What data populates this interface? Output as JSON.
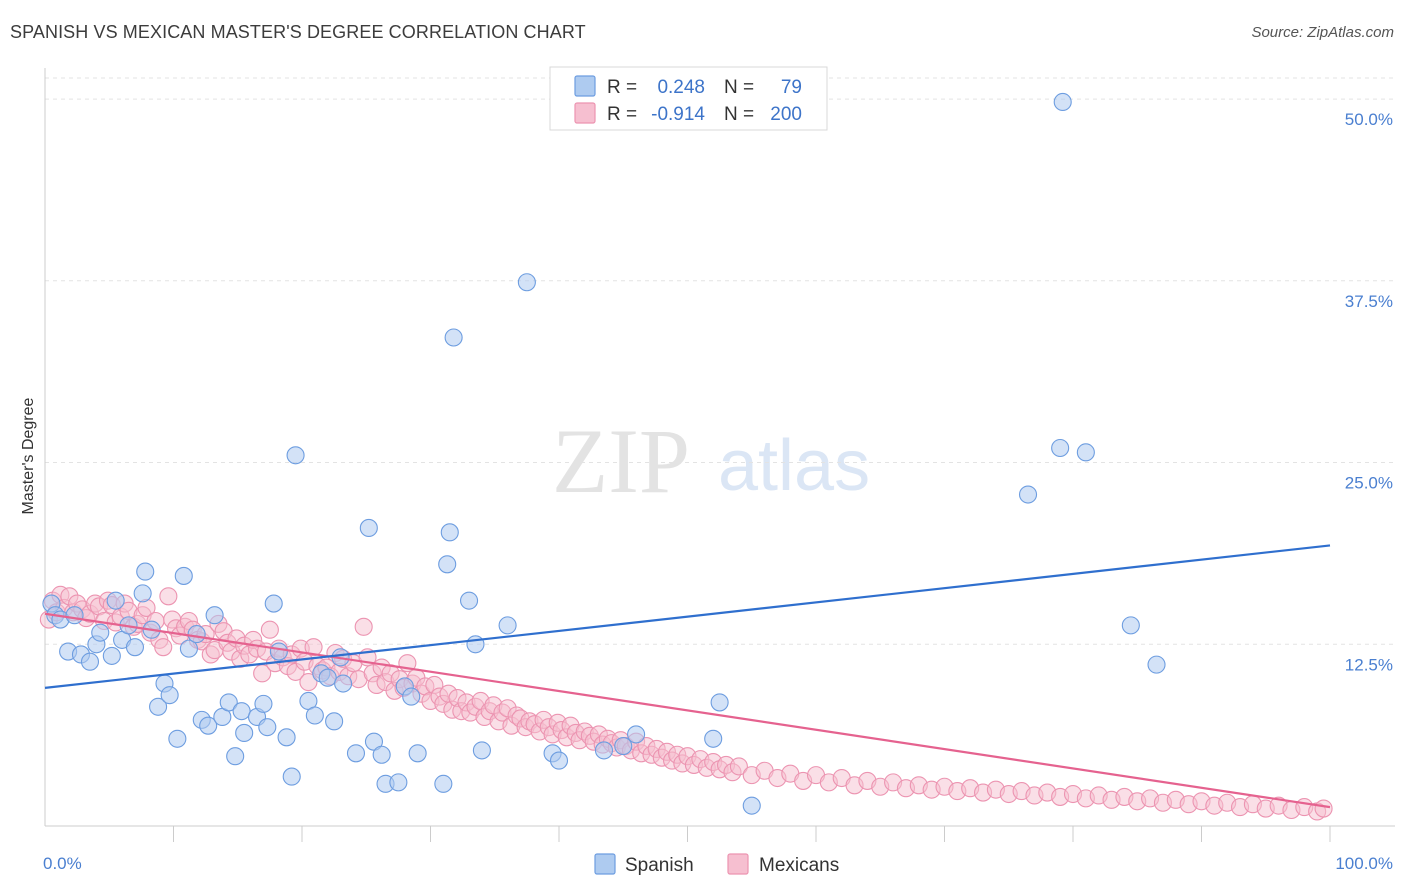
{
  "header": {
    "title": "SPANISH VS MEXICAN MASTER'S DEGREE CORRELATION CHART",
    "source": "Source: ZipAtlas.com"
  },
  "colors": {
    "spanish_fill": "#aecbf0",
    "spanish_stroke": "#6d9de0",
    "spanish_line": "#2f6fce",
    "mexican_fill": "#f6bfd0",
    "mexican_stroke": "#ec94b1",
    "mexican_line": "#e5628f",
    "axis_label": "#4a7fd0"
  },
  "watermark": {
    "part1": "ZIP",
    "part2": "atlas"
  },
  "legend": {
    "spanish": {
      "r_label": "R =",
      "r_value": "0.248",
      "n_label": "N =",
      "n_value": "79"
    },
    "mexican": {
      "r_label": "R =",
      "r_value": "-0.914",
      "n_label": "N =",
      "n_value": "200"
    }
  },
  "bottom_legend": {
    "spanish": "Spanish",
    "mexican": "Mexicans"
  },
  "chart_data": {
    "type": "scatter",
    "title": "SPANISH VS MEXICAN MASTER'S DEGREE CORRELATION CHART",
    "xlabel": "",
    "ylabel": "Master's Degree",
    "xlim": [
      0,
      100
    ],
    "ylim": [
      0,
      52
    ],
    "x_tick_labels": [
      "0.0%",
      "100.0%"
    ],
    "y_ticks": [
      12.5,
      25.0,
      37.5,
      50.0
    ],
    "y_tick_labels": [
      "12.5%",
      "25.0%",
      "37.5%",
      "50.0%"
    ],
    "grid": true,
    "series": [
      {
        "name": "Spanish",
        "R": 0.248,
        "N": 79,
        "trend": {
          "x": [
            0,
            100
          ],
          "y": [
            9.5,
            19.3
          ]
        },
        "points": [
          [
            0.5,
            15.3
          ],
          [
            0.8,
            14.5
          ],
          [
            1.2,
            14.2
          ],
          [
            1.8,
            12.0
          ],
          [
            2.3,
            14.5
          ],
          [
            2.8,
            11.8
          ],
          [
            3.5,
            11.3
          ],
          [
            4.0,
            12.5
          ],
          [
            4.3,
            13.3
          ],
          [
            5.2,
            11.7
          ],
          [
            5.5,
            15.5
          ],
          [
            6.0,
            12.8
          ],
          [
            6.5,
            13.8
          ],
          [
            7.0,
            12.3
          ],
          [
            7.6,
            16.0
          ],
          [
            7.8,
            17.5
          ],
          [
            8.3,
            13.5
          ],
          [
            8.8,
            8.2
          ],
          [
            9.3,
            9.8
          ],
          [
            9.7,
            9.0
          ],
          [
            10.3,
            6.0
          ],
          [
            10.8,
            17.2
          ],
          [
            11.2,
            12.2
          ],
          [
            11.8,
            13.2
          ],
          [
            12.2,
            7.3
          ],
          [
            12.7,
            6.9
          ],
          [
            13.2,
            14.5
          ],
          [
            13.8,
            7.5
          ],
          [
            14.3,
            8.5
          ],
          [
            14.8,
            4.8
          ],
          [
            15.3,
            7.9
          ],
          [
            15.5,
            6.4
          ],
          [
            16.5,
            7.5
          ],
          [
            17.0,
            8.4
          ],
          [
            17.3,
            6.8
          ],
          [
            17.8,
            15.3
          ],
          [
            18.2,
            12.0
          ],
          [
            18.8,
            6.1
          ],
          [
            19.2,
            3.4
          ],
          [
            19.5,
            25.5
          ],
          [
            20.5,
            8.6
          ],
          [
            21.0,
            7.6
          ],
          [
            21.5,
            10.5
          ],
          [
            22.0,
            10.2
          ],
          [
            22.5,
            7.2
          ],
          [
            23.0,
            11.6
          ],
          [
            23.2,
            9.8
          ],
          [
            24.2,
            5.0
          ],
          [
            25.2,
            20.5
          ],
          [
            25.6,
            5.8
          ],
          [
            26.2,
            4.9
          ],
          [
            26.5,
            2.9
          ],
          [
            27.5,
            3.0
          ],
          [
            28.0,
            9.6
          ],
          [
            28.5,
            8.9
          ],
          [
            29.0,
            5.0
          ],
          [
            31.0,
            2.9
          ],
          [
            31.5,
            20.2
          ],
          [
            31.8,
            33.6
          ],
          [
            31.3,
            18.0
          ],
          [
            33.0,
            15.5
          ],
          [
            33.5,
            12.5
          ],
          [
            34.0,
            5.2
          ],
          [
            36.0,
            13.8
          ],
          [
            37.5,
            37.4
          ],
          [
            39.5,
            5.0
          ],
          [
            40.0,
            4.5
          ],
          [
            43.5,
            5.2
          ],
          [
            45.0,
            5.5
          ],
          [
            46.0,
            6.3
          ],
          [
            52.0,
            6.0
          ],
          [
            52.5,
            8.5
          ],
          [
            55.0,
            1.4
          ],
          [
            76.5,
            22.8
          ],
          [
            79.0,
            26.0
          ],
          [
            81.0,
            25.7
          ],
          [
            79.2,
            49.8
          ],
          [
            84.5,
            13.8
          ],
          [
            86.5,
            11.1
          ]
        ]
      },
      {
        "name": "Mexicans",
        "R": -0.914,
        "N": 200,
        "trend": {
          "x": [
            0,
            100
          ],
          "y": [
            14.6,
            1.3
          ]
        },
        "points": [
          [
            0.3,
            14.2
          ],
          [
            0.6,
            15.5
          ],
          [
            0.9,
            14.7
          ],
          [
            1.2,
            15.9
          ],
          [
            1.5,
            15.0
          ],
          [
            1.9,
            15.8
          ],
          [
            2.2,
            14.7
          ],
          [
            2.5,
            15.3
          ],
          [
            2.9,
            14.9
          ],
          [
            3.2,
            14.3
          ],
          [
            3.5,
            14.6
          ],
          [
            3.9,
            15.3
          ],
          [
            4.2,
            15.1
          ],
          [
            4.6,
            14.1
          ],
          [
            4.9,
            15.5
          ],
          [
            5.2,
            15.2
          ],
          [
            5.5,
            14.0
          ],
          [
            5.9,
            14.4
          ],
          [
            6.2,
            15.3
          ],
          [
            6.5,
            14.8
          ],
          [
            6.9,
            13.7
          ],
          [
            7.2,
            13.9
          ],
          [
            7.6,
            14.5
          ],
          [
            7.9,
            15.0
          ],
          [
            8.2,
            13.3
          ],
          [
            8.6,
            14.1
          ],
          [
            8.9,
            12.8
          ],
          [
            9.2,
            12.3
          ],
          [
            9.6,
            15.8
          ],
          [
            9.9,
            14.2
          ],
          [
            10.2,
            13.6
          ],
          [
            10.5,
            13.1
          ],
          [
            10.9,
            13.7
          ],
          [
            11.2,
            14.1
          ],
          [
            11.5,
            13.5
          ],
          [
            11.9,
            12.8
          ],
          [
            12.2,
            12.7
          ],
          [
            12.5,
            13.2
          ],
          [
            12.9,
            11.8
          ],
          [
            13.2,
            12.1
          ],
          [
            13.5,
            13.9
          ],
          [
            13.9,
            13.4
          ],
          [
            14.2,
            12.6
          ],
          [
            14.5,
            12.0
          ],
          [
            14.9,
            12.9
          ],
          [
            15.2,
            11.5
          ],
          [
            15.5,
            12.4
          ],
          [
            15.9,
            11.8
          ],
          [
            16.2,
            12.8
          ],
          [
            16.5,
            12.2
          ],
          [
            16.9,
            10.5
          ],
          [
            17.2,
            12.0
          ],
          [
            17.5,
            13.5
          ],
          [
            17.9,
            11.2
          ],
          [
            18.2,
            12.2
          ],
          [
            18.5,
            11.6
          ],
          [
            18.9,
            11.0
          ],
          [
            19.2,
            11.8
          ],
          [
            19.5,
            10.6
          ],
          [
            19.9,
            12.2
          ],
          [
            20.2,
            11.3
          ],
          [
            20.5,
            9.9
          ],
          [
            20.9,
            12.3
          ],
          [
            21.2,
            11.0
          ],
          [
            21.6,
            10.7
          ],
          [
            21.9,
            10.9
          ],
          [
            22.2,
            10.3
          ],
          [
            22.6,
            11.9
          ],
          [
            22.9,
            10.6
          ],
          [
            23.2,
            11.5
          ],
          [
            23.6,
            10.3
          ],
          [
            24.0,
            11.2
          ],
          [
            24.4,
            10.1
          ],
          [
            24.8,
            13.7
          ],
          [
            25.1,
            11.6
          ],
          [
            25.5,
            10.5
          ],
          [
            25.8,
            9.7
          ],
          [
            26.2,
            10.9
          ],
          [
            26.5,
            9.9
          ],
          [
            26.9,
            10.5
          ],
          [
            27.2,
            9.3
          ],
          [
            27.6,
            10.1
          ],
          [
            27.9,
            9.5
          ],
          [
            28.2,
            11.2
          ],
          [
            28.6,
            9.8
          ],
          [
            28.9,
            10.2
          ],
          [
            29.3,
            9.1
          ],
          [
            29.6,
            9.6
          ],
          [
            30.0,
            8.6
          ],
          [
            30.3,
            9.7
          ],
          [
            30.7,
            8.9
          ],
          [
            31.0,
            8.4
          ],
          [
            31.4,
            9.1
          ],
          [
            31.7,
            8.0
          ],
          [
            32.1,
            8.8
          ],
          [
            32.4,
            7.9
          ],
          [
            32.8,
            8.5
          ],
          [
            33.1,
            7.8
          ],
          [
            33.5,
            8.2
          ],
          [
            33.9,
            8.6
          ],
          [
            34.2,
            7.5
          ],
          [
            34.6,
            7.9
          ],
          [
            34.9,
            8.3
          ],
          [
            35.3,
            7.2
          ],
          [
            35.6,
            7.8
          ],
          [
            36.0,
            8.1
          ],
          [
            36.3,
            6.9
          ],
          [
            36.7,
            7.6
          ],
          [
            37.0,
            7.4
          ],
          [
            37.4,
            6.8
          ],
          [
            37.7,
            7.2
          ],
          [
            38.1,
            7.0
          ],
          [
            38.5,
            6.5
          ],
          [
            38.8,
            7.3
          ],
          [
            39.2,
            6.8
          ],
          [
            39.5,
            6.3
          ],
          [
            39.9,
            7.1
          ],
          [
            40.2,
            6.6
          ],
          [
            40.6,
            6.1
          ],
          [
            40.9,
            6.9
          ],
          [
            41.3,
            6.4
          ],
          [
            41.6,
            5.9
          ],
          [
            42.0,
            6.5
          ],
          [
            42.4,
            6.2
          ],
          [
            42.7,
            5.8
          ],
          [
            43.1,
            6.3
          ],
          [
            43.4,
            5.6
          ],
          [
            43.8,
            6.0
          ],
          [
            44.1,
            5.7
          ],
          [
            44.5,
            5.4
          ],
          [
            44.8,
            5.9
          ],
          [
            45.2,
            5.5
          ],
          [
            45.6,
            5.2
          ],
          [
            46.0,
            5.8
          ],
          [
            46.4,
            5.0
          ],
          [
            46.8,
            5.5
          ],
          [
            47.2,
            4.9
          ],
          [
            47.6,
            5.3
          ],
          [
            48.0,
            4.7
          ],
          [
            48.4,
            5.1
          ],
          [
            48.8,
            4.5
          ],
          [
            49.2,
            4.9
          ],
          [
            49.6,
            4.3
          ],
          [
            50.0,
            4.8
          ],
          [
            50.5,
            4.2
          ],
          [
            51.0,
            4.6
          ],
          [
            51.5,
            4.0
          ],
          [
            52.0,
            4.4
          ],
          [
            52.5,
            3.9
          ],
          [
            53.0,
            4.2
          ],
          [
            53.5,
            3.7
          ],
          [
            54.0,
            4.1
          ],
          [
            55.0,
            3.5
          ],
          [
            56.0,
            3.8
          ],
          [
            57.0,
            3.3
          ],
          [
            58.0,
            3.6
          ],
          [
            59.0,
            3.1
          ],
          [
            60.0,
            3.5
          ],
          [
            61.0,
            3.0
          ],
          [
            62.0,
            3.3
          ],
          [
            63.0,
            2.8
          ],
          [
            64.0,
            3.1
          ],
          [
            65.0,
            2.7
          ],
          [
            66.0,
            3.0
          ],
          [
            67.0,
            2.6
          ],
          [
            68.0,
            2.8
          ],
          [
            69.0,
            2.5
          ],
          [
            70.0,
            2.7
          ],
          [
            71.0,
            2.4
          ],
          [
            72.0,
            2.6
          ],
          [
            73.0,
            2.3
          ],
          [
            74.0,
            2.5
          ],
          [
            75.0,
            2.2
          ],
          [
            76.0,
            2.4
          ],
          [
            77.0,
            2.1
          ],
          [
            78.0,
            2.3
          ],
          [
            79.0,
            2.0
          ],
          [
            80.0,
            2.2
          ],
          [
            81.0,
            1.9
          ],
          [
            82.0,
            2.1
          ],
          [
            83.0,
            1.8
          ],
          [
            84.0,
            2.0
          ],
          [
            85.0,
            1.7
          ],
          [
            86.0,
            1.9
          ],
          [
            87.0,
            1.6
          ],
          [
            88.0,
            1.8
          ],
          [
            89.0,
            1.5
          ],
          [
            90.0,
            1.7
          ],
          [
            91.0,
            1.4
          ],
          [
            92.0,
            1.6
          ],
          [
            93.0,
            1.3
          ],
          [
            94.0,
            1.5
          ],
          [
            95.0,
            1.2
          ],
          [
            96.0,
            1.4
          ],
          [
            97.0,
            1.1
          ],
          [
            98.0,
            1.3
          ],
          [
            99.0,
            1.0
          ],
          [
            99.5,
            1.2
          ]
        ]
      }
    ]
  }
}
